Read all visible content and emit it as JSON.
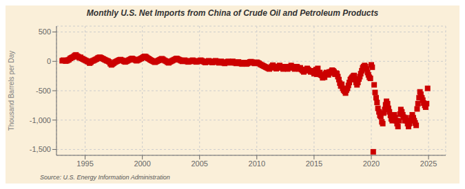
{
  "chart_data": {
    "type": "scatter",
    "title": "Monthly U.S. Net Imports from China of Crude Oil and Petroleum Products",
    "ylabel": "Thousand Barrels per Day",
    "annotation": "Source: U.S. Energy Information Administration",
    "color": "#cc0000",
    "marker": "square",
    "grid": true,
    "xlim": [
      1992.5,
      2026.5
    ],
    "xticks": [
      1995,
      2000,
      2005,
      2010,
      2015,
      2020,
      2025
    ],
    "ylim": [
      -1600,
      600
    ],
    "yticks": [
      {
        "value": -1500,
        "label": "-1,500"
      },
      {
        "value": -1000,
        "label": "-1,000"
      },
      -500,
      0,
      500
    ],
    "x": [
      1993.0,
      1993.1,
      1993.2,
      1993.3,
      1993.4,
      1993.5,
      1993.6,
      1993.7,
      1993.8,
      1993.9,
      1994.0,
      1994.1,
      1994.2,
      1994.3,
      1994.4,
      1994.5,
      1994.6,
      1994.7,
      1994.8,
      1994.9,
      1995.0,
      1995.1,
      1995.2,
      1995.3,
      1995.4,
      1995.5,
      1995.6,
      1995.7,
      1995.8,
      1995.9,
      1996.0,
      1996.1,
      1996.2,
      1996.3,
      1996.4,
      1996.5,
      1996.6,
      1996.7,
      1996.8,
      1996.9,
      1997.0,
      1997.1,
      1997.2,
      1997.3,
      1997.4,
      1997.5,
      1997.6,
      1997.7,
      1997.8,
      1997.9,
      1998.0,
      1998.1,
      1998.2,
      1998.3,
      1998.4,
      1998.5,
      1998.6,
      1998.7,
      1998.8,
      1998.9,
      1999.0,
      1999.1,
      1999.2,
      1999.3,
      1999.4,
      1999.5,
      1999.6,
      1999.7,
      1999.8,
      1999.9,
      2000.0,
      2000.1,
      2000.2,
      2000.3,
      2000.4,
      2000.5,
      2000.6,
      2000.7,
      2000.8,
      2000.9,
      2001.0,
      2001.1,
      2001.2,
      2001.3,
      2001.4,
      2001.5,
      2001.6,
      2001.7,
      2001.8,
      2001.9,
      2002.0,
      2002.1,
      2002.2,
      2002.3,
      2002.4,
      2002.5,
      2002.6,
      2002.7,
      2002.8,
      2002.9,
      2003.0,
      2003.1,
      2003.2,
      2003.3,
      2003.4,
      2003.5,
      2003.6,
      2003.7,
      2003.8,
      2003.9,
      2004.0,
      2004.1,
      2004.2,
      2004.3,
      2004.4,
      2004.5,
      2004.6,
      2004.7,
      2004.8,
      2004.9,
      2005.0,
      2005.1,
      2005.2,
      2005.3,
      2005.4,
      2005.5,
      2005.6,
      2005.7,
      2005.8,
      2005.9,
      2006.0,
      2006.1,
      2006.2,
      2006.3,
      2006.4,
      2006.5,
      2006.6,
      2006.7,
      2006.8,
      2006.9,
      2007.0,
      2007.1,
      2007.2,
      2007.3,
      2007.4,
      2007.5,
      2007.6,
      2007.7,
      2007.8,
      2007.9,
      2008.0,
      2008.1,
      2008.2,
      2008.3,
      2008.4,
      2008.5,
      2008.6,
      2008.7,
      2008.8,
      2008.9,
      2009.0,
      2009.1,
      2009.2,
      2009.3,
      2009.4,
      2009.5,
      2009.6,
      2009.7,
      2009.8,
      2009.9,
      2010.0,
      2010.1,
      2010.2,
      2010.3,
      2010.4,
      2010.5,
      2010.6,
      2010.7,
      2010.8,
      2010.9,
      2011.0,
      2011.1,
      2011.2,
      2011.3,
      2011.4,
      2011.5,
      2011.6,
      2011.7,
      2011.8,
      2011.9,
      2012.0,
      2012.1,
      2012.2,
      2012.3,
      2012.4,
      2012.5,
      2012.6,
      2012.7,
      2012.8,
      2012.9,
      2013.0,
      2013.1,
      2013.2,
      2013.3,
      2013.4,
      2013.5,
      2013.6,
      2013.7,
      2013.8,
      2013.9,
      2014.0,
      2014.1,
      2014.2,
      2014.3,
      2014.4,
      2014.5,
      2014.6,
      2014.7,
      2014.8,
      2014.9,
      2015.0,
      2015.08,
      2015.17,
      2015.25,
      2015.33,
      2015.42,
      2015.5,
      2015.58,
      2015.67,
      2015.75,
      2015.83,
      2015.92,
      2016.0,
      2016.08,
      2016.17,
      2016.25,
      2016.33,
      2016.42,
      2016.5,
      2016.58,
      2016.67,
      2016.75,
      2016.83,
      2016.92,
      2017.0,
      2017.08,
      2017.17,
      2017.25,
      2017.33,
      2017.42,
      2017.5,
      2017.58,
      2017.67,
      2017.75,
      2017.83,
      2017.92,
      2018.0,
      2018.08,
      2018.17,
      2018.25,
      2018.33,
      2018.42,
      2018.5,
      2018.58,
      2018.67,
      2018.75,
      2018.83,
      2018.92,
      2019.0,
      2019.08,
      2019.17,
      2019.25,
      2019.33,
      2019.42,
      2019.5,
      2019.58,
      2019.67,
      2019.75,
      2019.83,
      2019.92,
      2020.0,
      2020.08,
      2020.17,
      2020.25,
      2020.33,
      2020.42,
      2020.5,
      2020.58,
      2020.67,
      2020.75,
      2020.83,
      2020.92,
      2021.0,
      2021.08,
      2021.17,
      2021.25,
      2021.33,
      2021.42,
      2021.5,
      2021.58,
      2021.67,
      2021.75,
      2021.83,
      2021.92,
      2022.0,
      2022.08,
      2022.17,
      2022.25,
      2022.33,
      2022.42,
      2022.5,
      2022.58,
      2022.67,
      2022.75,
      2022.83,
      2022.92,
      2023.0,
      2023.08,
      2023.17,
      2023.25,
      2023.33,
      2023.42,
      2023.5,
      2023.58,
      2023.67,
      2023.75,
      2023.83,
      2023.92,
      2024.0,
      2024.08,
      2024.17,
      2024.25,
      2024.33,
      2024.42,
      2024.5,
      2024.58,
      2024.67,
      2024.75,
      2024.83,
      2024.92
    ],
    "values": [
      10,
      20,
      15,
      5,
      10,
      20,
      30,
      50,
      60,
      70,
      80,
      100,
      110,
      90,
      80,
      60,
      70,
      50,
      40,
      30,
      20,
      10,
      0,
      -10,
      -30,
      -15,
      5,
      10,
      20,
      30,
      40,
      55,
      65,
      70,
      60,
      50,
      40,
      30,
      20,
      10,
      5,
      -10,
      -40,
      -60,
      -45,
      -30,
      -15,
      -5,
      5,
      15,
      25,
      30,
      20,
      10,
      0,
      -10,
      0,
      10,
      20,
      30,
      40,
      50,
      40,
      30,
      20,
      10,
      20,
      30,
      40,
      50,
      60,
      75,
      85,
      80,
      65,
      50,
      40,
      25,
      15,
      5,
      -5,
      -15,
      -5,
      5,
      15,
      25,
      35,
      45,
      35,
      20,
      10,
      0,
      -15,
      -25,
      -10,
      0,
      10,
      20,
      30,
      40,
      50,
      40,
      30,
      20,
      10,
      0,
      10,
      20,
      10,
      0,
      -10,
      -5,
      5,
      10,
      20,
      10,
      0,
      -10,
      -5,
      5,
      10,
      20,
      10,
      0,
      -10,
      -20,
      -10,
      0,
      10,
      0,
      -10,
      -20,
      -10,
      0,
      10,
      0,
      -15,
      -25,
      -10,
      0,
      -15,
      -25,
      -35,
      -20,
      -10,
      0,
      -15,
      -25,
      -10,
      0,
      -15,
      -25,
      -35,
      -20,
      -10,
      -25,
      -35,
      -45,
      -30,
      -20,
      -35,
      -45,
      -35,
      -20,
      -10,
      -5,
      -15,
      -25,
      -35,
      -25,
      -15,
      -25,
      -35,
      -50,
      -60,
      -70,
      -80,
      -90,
      -100,
      -110,
      -120,
      -130,
      -110,
      -85,
      -65,
      -85,
      -105,
      -125,
      -110,
      -90,
      -70,
      -90,
      -110,
      -130,
      -110,
      -90,
      -110,
      -130,
      -110,
      -90,
      -70,
      -90,
      -110,
      -130,
      -110,
      -90,
      -110,
      -130,
      -110,
      -140,
      -160,
      -180,
      -160,
      -140,
      -120,
      -140,
      -160,
      -180,
      -160,
      -180,
      -210,
      -170,
      -140,
      -220,
      -120,
      -200,
      -190,
      -230,
      -240,
      -280,
      -260,
      -270,
      -210,
      -190,
      -210,
      -230,
      -180,
      -200,
      -170,
      -150,
      -160,
      -180,
      -220,
      -200,
      -210,
      -260,
      -310,
      -370,
      -420,
      -390,
      -460,
      -490,
      -510,
      -540,
      -490,
      -460,
      -410,
      -360,
      -310,
      -290,
      -270,
      -250,
      -240,
      -310,
      -360,
      -400,
      -360,
      -300,
      -260,
      -210,
      -160,
      -110,
      -90,
      -70,
      -90,
      -130,
      -190,
      -230,
      -270,
      -290,
      -60,
      -100,
      -1540,
      -400,
      -530,
      -620,
      -700,
      -800,
      -860,
      -920,
      -940,
      -1030,
      -1060,
      -880,
      -820,
      -740,
      -680,
      -720,
      -800,
      -860,
      -920,
      -980,
      -1010,
      -970,
      -910,
      -960,
      -1010,
      -1060,
      -1110,
      -1010,
      -900,
      -820,
      -860,
      -910,
      -950,
      -1010,
      -960,
      -1010,
      -1060,
      -1110,
      -1060,
      -1010,
      -960,
      -910,
      -960,
      -1010,
      -1050,
      -1090,
      -810,
      -720,
      -620,
      -520,
      -560,
      -620,
      -660,
      -710,
      -750,
      -780,
      -720,
      -460
    ]
  }
}
